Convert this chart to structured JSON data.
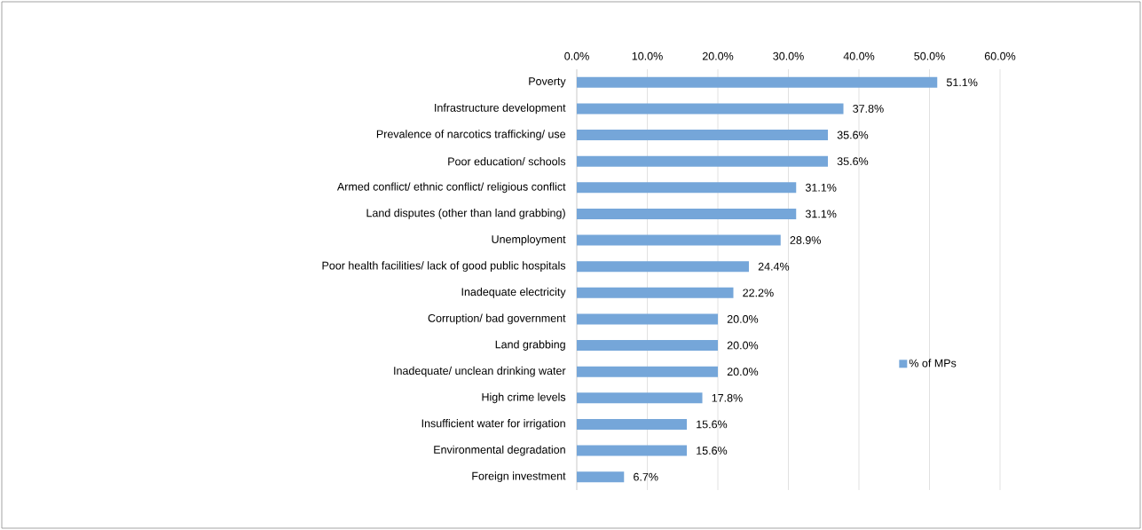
{
  "chart_data": {
    "type": "bar",
    "orientation": "horizontal",
    "categories": [
      "Poverty",
      "Infrastructure development",
      "Prevalence of narcotics trafficking/ use",
      "Poor education/ schools",
      "Armed conflict/ ethnic conflict/ religious conflict",
      "Land disputes (other than land grabbing)",
      "Unemployment",
      "Poor health facilities/ lack of good public hospitals",
      "Inadequate electricity",
      "Corruption/ bad government",
      "Land grabbing",
      "Inadequate/ unclean drinking water",
      "High crime levels",
      "Insufficient water for irrigation",
      "Environmental degradation",
      "Foreign investment"
    ],
    "series": [
      {
        "name": "% of MPs",
        "color": "#75a6d9",
        "values": [
          51.1,
          37.8,
          35.6,
          35.6,
          31.1,
          31.1,
          28.9,
          24.4,
          22.2,
          20.0,
          20.0,
          20.0,
          17.8,
          15.6,
          15.6,
          6.7
        ],
        "value_labels": [
          "51.1%",
          "37.8%",
          "35.6%",
          "35.6%",
          "31.1%",
          "31.1%",
          "28.9%",
          "24.4%",
          "22.2%",
          "20.0%",
          "20.0%",
          "20.0%",
          "17.8%",
          "15.6%",
          "15.6%",
          "6.7%"
        ]
      }
    ],
    "xlim": [
      0,
      60
    ],
    "xticks": [
      {
        "value": 0,
        "label": "0.0%"
      },
      {
        "value": 10,
        "label": "10.0%"
      },
      {
        "value": 20,
        "label": "20.0%"
      },
      {
        "value": 30,
        "label": "30.0%"
      },
      {
        "value": 40,
        "label": "40.0%"
      },
      {
        "value": 50,
        "label": "50.0%"
      },
      {
        "value": 60,
        "label": "60.0%"
      }
    ],
    "grid": "x",
    "legend": "right"
  }
}
